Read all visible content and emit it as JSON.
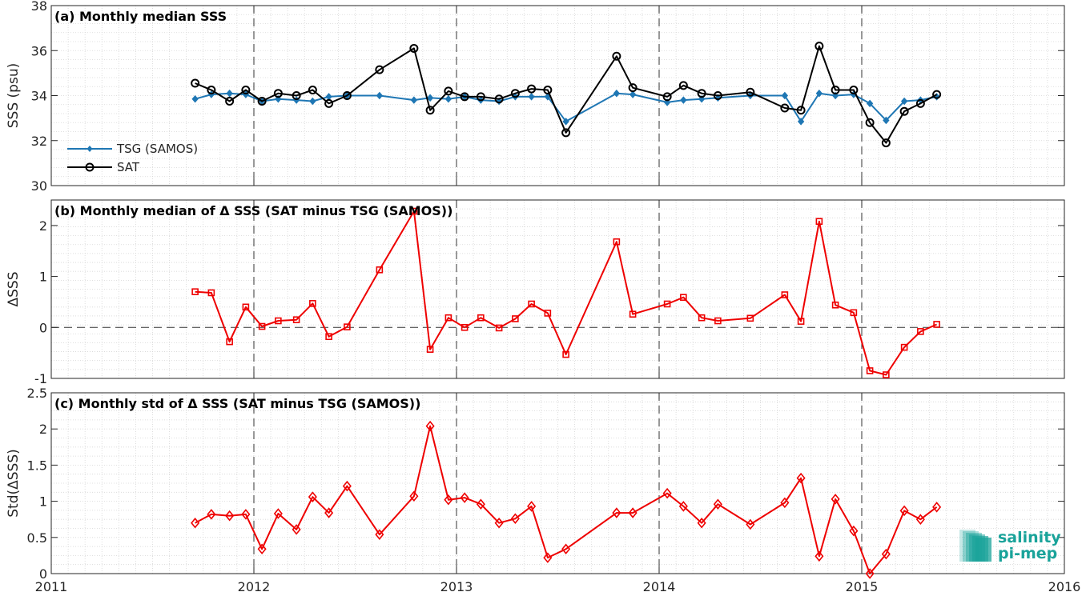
{
  "colors": {
    "tsg": "#1f77b4",
    "sat": "#000000",
    "delta": "#ee0000",
    "grid": "#d6d6d6",
    "logo": "#1aa39a"
  },
  "logo": {
    "line1": "salinity",
    "line2": "pi-mep"
  },
  "chart_data": [
    {
      "type": "line",
      "title": "(a) Monthly median SSS",
      "ylabel": "SSS (psu)",
      "xlim": [
        2011,
        2016
      ],
      "ylim": [
        30,
        38
      ],
      "yticks": [
        30,
        32,
        34,
        36,
        38
      ],
      "legend": {
        "position": "bottom-left"
      },
      "series": [
        {
          "name": "TSG (SAMOS)",
          "marker": "diamond",
          "x": [
            2011.71,
            2011.79,
            2011.88,
            2011.96,
            2012.04,
            2012.12,
            2012.21,
            2012.29,
            2012.37,
            2012.46,
            2012.62,
            2012.79,
            2012.87,
            2012.96,
            2013.04,
            2013.12,
            2013.21,
            2013.29,
            2013.37,
            2013.45,
            2013.54,
            2013.79,
            2013.87,
            2014.04,
            2014.12,
            2014.21,
            2014.29,
            2014.45,
            2014.62,
            2014.7,
            2014.79,
            2014.87,
            2014.96,
            2015.04,
            2015.12,
            2015.21,
            2015.29,
            2015.37
          ],
          "y": [
            33.85,
            34.05,
            34.1,
            34.05,
            33.75,
            33.85,
            33.8,
            33.75,
            33.95,
            34.0,
            34.0,
            33.8,
            33.9,
            33.85,
            33.95,
            33.8,
            33.75,
            33.95,
            33.95,
            33.95,
            32.85,
            34.1,
            34.05,
            33.7,
            33.8,
            33.85,
            33.9,
            34.0,
            34.0,
            32.85,
            34.1,
            34.0,
            34.05,
            33.65,
            32.9,
            33.75,
            33.8,
            33.95
          ]
        },
        {
          "name": "SAT",
          "marker": "circle",
          "x": [
            2011.71,
            2011.79,
            2011.88,
            2011.96,
            2012.04,
            2012.12,
            2012.21,
            2012.29,
            2012.37,
            2012.46,
            2012.62,
            2012.79,
            2012.87,
            2012.96,
            2013.04,
            2013.12,
            2013.21,
            2013.29,
            2013.37,
            2013.45,
            2013.54,
            2013.79,
            2013.87,
            2014.04,
            2014.12,
            2014.21,
            2014.29,
            2014.45,
            2014.62,
            2014.7,
            2014.79,
            2014.87,
            2014.96,
            2015.04,
            2015.12,
            2015.21,
            2015.29,
            2015.37
          ],
          "y": [
            34.55,
            34.25,
            33.75,
            34.25,
            33.75,
            34.1,
            34.0,
            34.25,
            33.65,
            34.0,
            35.15,
            36.1,
            33.35,
            34.2,
            33.95,
            33.95,
            33.85,
            34.1,
            34.3,
            34.25,
            32.35,
            35.75,
            34.35,
            33.95,
            34.45,
            34.1,
            34.0,
            34.15,
            33.45,
            33.35,
            36.2,
            34.25,
            34.25,
            32.8,
            31.9,
            33.3,
            33.65,
            34.05
          ]
        }
      ]
    },
    {
      "type": "line",
      "title": "(b) Monthly median of Δ SSS (SAT minus TSG (SAMOS))",
      "ylabel": "ΔSSS",
      "xlim": [
        2011,
        2016
      ],
      "ylim": [
        -1,
        2.5
      ],
      "yticks": [
        -1,
        0,
        1,
        2
      ],
      "zero_line": true,
      "series": [
        {
          "marker": "square",
          "x": [
            2011.71,
            2011.79,
            2011.88,
            2011.96,
            2012.04,
            2012.12,
            2012.21,
            2012.29,
            2012.37,
            2012.46,
            2012.62,
            2012.79,
            2012.87,
            2012.96,
            2013.04,
            2013.12,
            2013.21,
            2013.29,
            2013.37,
            2013.45,
            2013.54,
            2013.79,
            2013.87,
            2014.04,
            2014.12,
            2014.21,
            2014.29,
            2014.45,
            2014.62,
            2014.7,
            2014.79,
            2014.87,
            2014.96,
            2015.04,
            2015.12,
            2015.21,
            2015.29,
            2015.37
          ],
          "y": [
            0.7,
            0.68,
            -0.28,
            0.4,
            0.02,
            0.13,
            0.15,
            0.47,
            -0.18,
            0.01,
            1.13,
            2.28,
            -0.43,
            0.19,
            0.0,
            0.19,
            -0.01,
            0.17,
            0.46,
            0.28,
            -0.53,
            1.68,
            0.26,
            0.46,
            0.59,
            0.19,
            0.13,
            0.18,
            0.64,
            0.12,
            2.08,
            0.44,
            0.29,
            -0.85,
            -0.93,
            -0.39,
            -0.08,
            0.06
          ]
        }
      ]
    },
    {
      "type": "line",
      "title": "(c) Monthly std of Δ SSS (SAT minus TSG (SAMOS))",
      "ylabel": "Std(ΔSSS)",
      "xlim": [
        2011,
        2016
      ],
      "ylim": [
        0,
        2.5
      ],
      "yticks": [
        0,
        0.5,
        1,
        1.5,
        2,
        2.5
      ],
      "xticks": [
        2011,
        2012,
        2013,
        2014,
        2015,
        2016
      ],
      "series": [
        {
          "marker": "diamond",
          "x": [
            2011.71,
            2011.79,
            2011.88,
            2011.96,
            2012.04,
            2012.12,
            2012.21,
            2012.29,
            2012.37,
            2012.46,
            2012.62,
            2012.79,
            2012.87,
            2012.96,
            2013.04,
            2013.12,
            2013.21,
            2013.29,
            2013.37,
            2013.45,
            2013.54,
            2013.79,
            2013.87,
            2014.04,
            2014.12,
            2014.21,
            2014.29,
            2014.45,
            2014.62,
            2014.7,
            2014.79,
            2014.87,
            2014.96,
            2015.04,
            2015.12,
            2015.21,
            2015.29,
            2015.37
          ],
          "y": [
            0.7,
            0.82,
            0.8,
            0.82,
            0.34,
            0.83,
            0.61,
            1.06,
            0.84,
            1.21,
            0.54,
            1.07,
            2.04,
            1.02,
            1.05,
            0.96,
            0.7,
            0.76,
            0.93,
            0.22,
            0.34,
            0.84,
            0.84,
            1.11,
            0.93,
            0.7,
            0.96,
            0.68,
            0.98,
            1.32,
            0.24,
            1.03,
            0.59,
            0.0,
            0.27,
            0.87,
            0.75,
            0.92
          ]
        }
      ]
    }
  ]
}
